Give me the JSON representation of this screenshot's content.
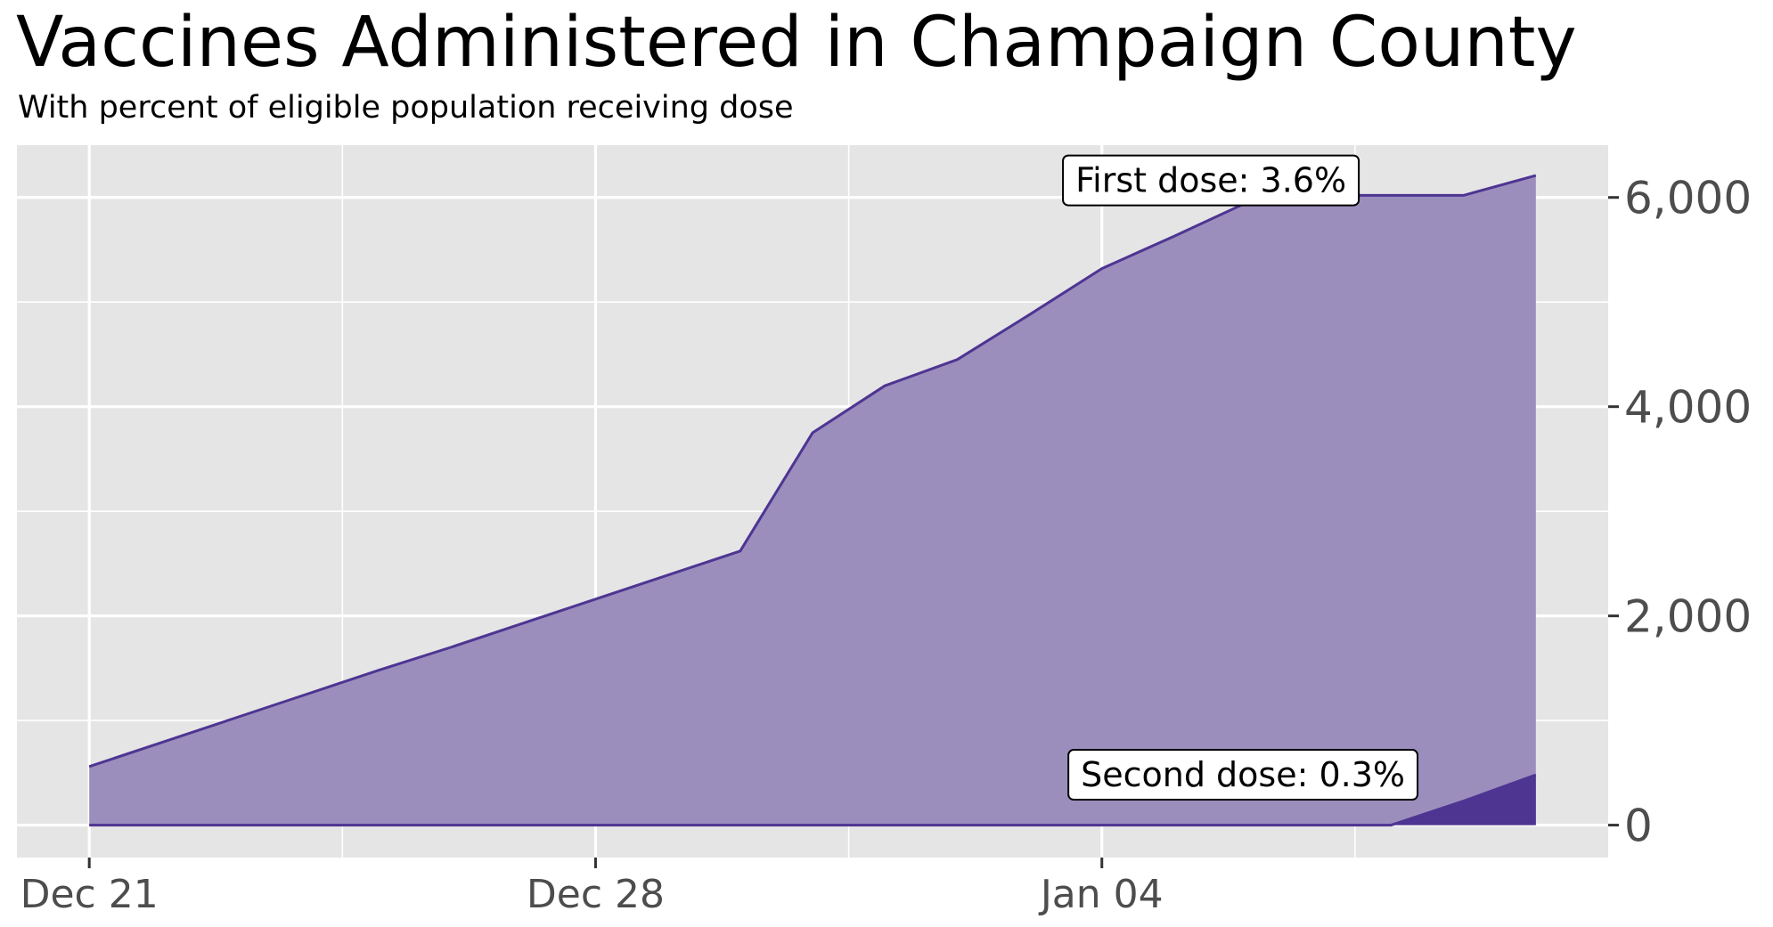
{
  "chart_data": {
    "type": "area",
    "title": "Vaccines Administered in Champaign County",
    "subtitle": "With percent of eligible population receiving dose",
    "xlabel": "",
    "ylabel": "",
    "x": [
      "2020-12-21",
      "2020-12-22",
      "2020-12-23",
      "2020-12-24",
      "2020-12-25",
      "2020-12-26",
      "2020-12-27",
      "2020-12-28",
      "2020-12-29",
      "2020-12-30",
      "2020-12-31",
      "2021-01-01",
      "2021-01-02",
      "2021-01-03",
      "2021-01-04",
      "2021-01-05",
      "2021-01-06",
      "2021-01-07",
      "2021-01-08",
      "2021-01-09",
      "2021-01-10"
    ],
    "x_ticks": [
      "2020-12-21",
      "2020-12-28",
      "2021-01-04"
    ],
    "x_tick_labels": [
      "Dec 21",
      "Dec 28",
      "Jan 04"
    ],
    "y_ticks": [
      0,
      2000,
      4000,
      6000
    ],
    "y_tick_labels": [
      "0",
      "2,000",
      "4,000",
      "6,000"
    ],
    "ylim": [
      -310,
      6500
    ],
    "xlim": [
      "2020-12-20T00:00",
      "2021-01-11T00:00"
    ],
    "y_axis_position": "right",
    "grid": true,
    "legend": "none",
    "series": [
      {
        "name": "First dose",
        "values": [
          560,
          790,
          1020,
          1250,
          1480,
          1700,
          1930,
          2160,
          2390,
          2620,
          3750,
          4200,
          4450,
          4880,
          5320,
          5630,
          5950,
          6020,
          6020,
          6020,
          6210
        ]
      },
      {
        "name": "Second dose",
        "values": [
          0,
          0,
          0,
          0,
          0,
          0,
          0,
          0,
          0,
          0,
          0,
          0,
          0,
          0,
          0,
          0,
          0,
          0,
          0,
          230,
          480
        ]
      }
    ],
    "annotations": [
      {
        "text": "First dose: 3.6%",
        "x": "2021-01-06",
        "y": 6210
      },
      {
        "text": "Second dose: 0.3%",
        "x": "2021-01-06",
        "y": 460
      }
    ],
    "colors": {
      "panel_background": "#e5e5e5",
      "grid": "#ffffff",
      "first_dose_fill": "#9b8ebd",
      "second_dose_fill": "#4e3592",
      "line": "#4e3592",
      "tick_text": "#4d4d4d"
    }
  }
}
